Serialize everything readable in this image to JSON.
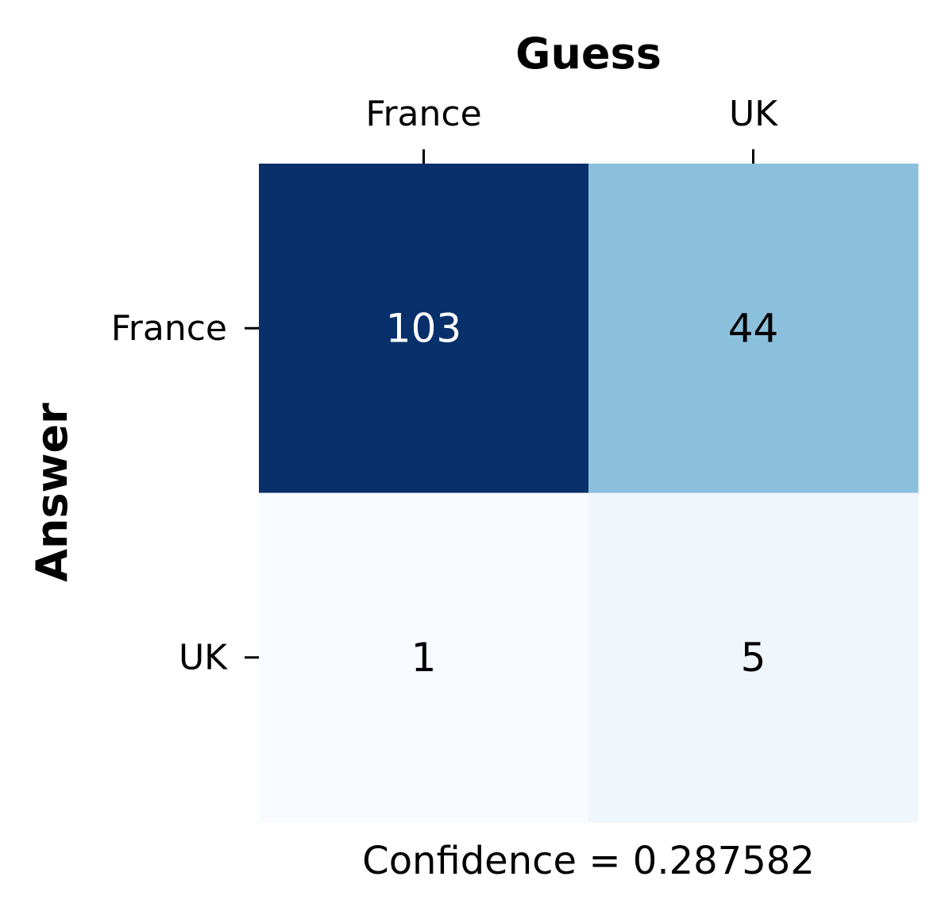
{
  "chart_data": {
    "type": "heatmap",
    "x_axis_title": "Guess",
    "y_axis_title": "Answer",
    "x_categories": [
      "France",
      "UK"
    ],
    "y_categories": [
      "France",
      "UK"
    ],
    "values": [
      [
        103,
        44
      ],
      [
        1,
        5
      ]
    ],
    "caption": "Confidence = 0.287582",
    "colormap": "Blues",
    "x_ticks_position": "top",
    "colorbar": false,
    "grid": false
  }
}
